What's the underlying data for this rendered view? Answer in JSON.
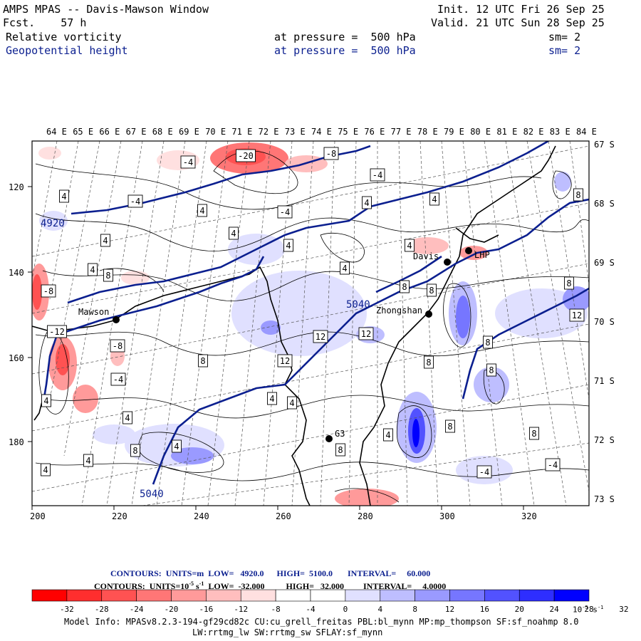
{
  "header": {
    "title": "AMPS MPAS -- Davis-Mawson Window",
    "fcst_label": "Fcst.",
    "fcst_value": "57 h",
    "init": "Init. 12 UTC Fri 26 Sep 25",
    "valid": "Valid. 21 UTC Sun 28 Sep 25",
    "field1": {
      "name": "Relative vorticity",
      "level": "at pressure =  500 hPa",
      "sm": "sm= 2"
    },
    "field2": {
      "name": "Geopotential height",
      "level": "at pressure =  500 hPa",
      "sm": "sm= 2"
    }
  },
  "map": {
    "lon_labels": [
      "64 E",
      "65 E",
      "66 E",
      "67 E",
      "68 E",
      "69 E",
      "70 E",
      "71 E",
      "72 E",
      "73 E",
      "74 E",
      "75 E",
      "76 E",
      "77 E",
      "78 E",
      "79 E",
      "80 E",
      "81 E",
      "82 E",
      "83 E",
      "84 E"
    ],
    "lat_labels": [
      "67 S",
      "68 S",
      "69 S",
      "70 S",
      "71 S",
      "72 S",
      "73 S"
    ],
    "x_ticks": [
      "200",
      "220",
      "240",
      "260",
      "280",
      "300",
      "320"
    ],
    "y_ticks": [
      "120",
      "140",
      "160",
      "180"
    ],
    "stations": [
      "Mawson",
      "Davis",
      "Zhongshan",
      "LHP",
      "G3"
    ],
    "height_labels": [
      "4920",
      "5040",
      "5040"
    ],
    "vort_labels": [
      "-20",
      "-8",
      "-4",
      "-4",
      "-4",
      "-4",
      "4",
      "4",
      "4",
      "4",
      "4",
      "4",
      "4",
      "4",
      "4",
      "8",
      "8",
      "8",
      "8",
      "8",
      "12",
      "12",
      "12",
      "-8",
      "-12",
      "-8",
      "-4",
      "4",
      "8",
      "8",
      "8",
      "8",
      "12",
      "4",
      "4",
      "4",
      "4",
      "8",
      "8",
      "8",
      "4",
      "4",
      "8",
      "-4",
      "-4",
      "4",
      "4"
    ]
  },
  "contours": {
    "line1": {
      "label": "CONTOURS:  UNITS=m  LOW=   4920.0      HIGH=  5100.0       INTERVAL=     60.000"
    },
    "line2": {
      "label": "CONTOURS:  UNITS=10",
      "exp": "-5",
      "unit_tail": " s",
      "exp2": "-1",
      "rest": "  LOW=  -32.000          HIGH=   32.000         INTERVAL=     4.0000"
    }
  },
  "colorbar": {
    "colors": [
      "#ff0000",
      "#ff2e2e",
      "#ff5252",
      "#ff7676",
      "#ff9a9a",
      "#ffbebe",
      "#ffe0e0",
      "#ffffff",
      "#ffffff",
      "#e0e0ff",
      "#bebeff",
      "#9a9aff",
      "#7676ff",
      "#5252ff",
      "#2e2eff",
      "#0000ff"
    ],
    "labels": [
      "-32",
      "-28",
      "-24",
      "-20",
      "-16",
      "-12",
      "-8",
      "-4",
      "0",
      "4",
      "8",
      "12",
      "16",
      "20",
      "24",
      "28",
      "32"
    ],
    "unit": "10",
    "unit_exp": "-5",
    "unit_s": " s",
    "unit_exp2": "-1"
  },
  "footer": {
    "line1": "Model Info: MPASv8.2.3-194-gf29cd82c CU:cu_grell_freitas PBL:bl_mynn MP:mp_thompson SF:sf_noahmp 8.0",
    "line2": "LW:rrtmg_lw SW:rrtmg_sw SFLAY:sf_mynn"
  }
}
